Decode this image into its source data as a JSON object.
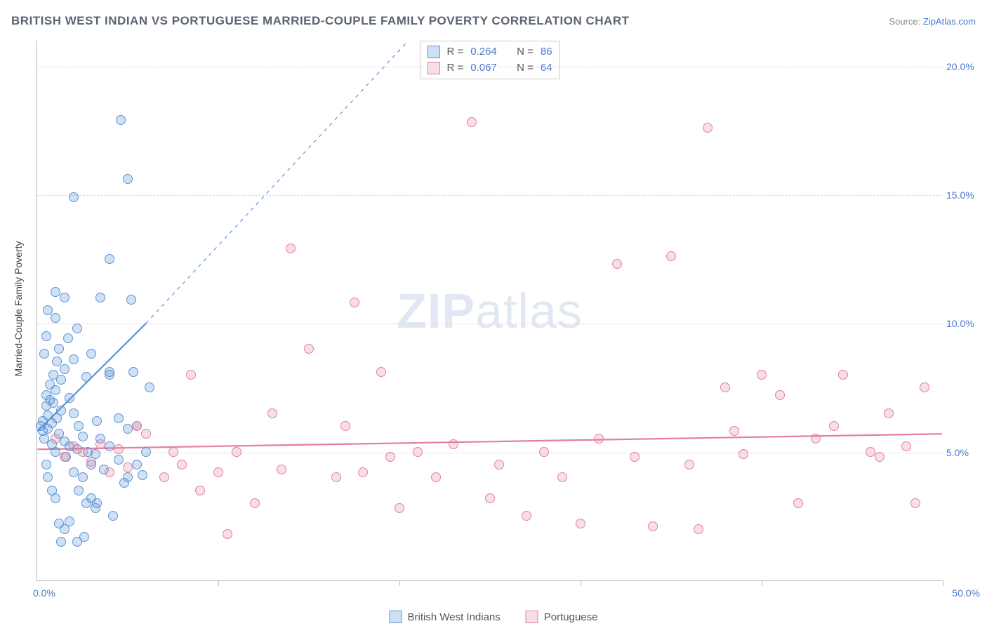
{
  "header": {
    "title": "BRITISH WEST INDIAN VS PORTUGUESE MARRIED-COUPLE FAMILY POVERTY CORRELATION CHART",
    "source_label": "Source:",
    "source_name": "ZipAtlas.com"
  },
  "watermark": {
    "zip": "ZIP",
    "atlas": "atlas"
  },
  "chart": {
    "type": "scatter",
    "yaxis_title": "Married-Couple Family Poverty",
    "background_color": "#ffffff",
    "grid_color": "#d8d8d8",
    "axis_color": "#bbbbbb",
    "value_text_color": "#4a78c8",
    "label_text_color": "#555555",
    "xlim": [
      0,
      50
    ],
    "ylim": [
      0,
      21
    ],
    "xtick_positions": [
      0,
      10,
      20,
      30,
      40,
      50
    ],
    "xtick_labels": {
      "start": "0.0%",
      "end": "50.0%"
    },
    "ytick_values": [
      5,
      10,
      15,
      20
    ],
    "ytick_labels": [
      "5.0%",
      "10.0%",
      "15.0%",
      "20.0%"
    ],
    "marker_radius": 7,
    "marker_border_width": 1.2,
    "marker_fill_opacity": 0.28,
    "series": [
      {
        "name": "British West Indians",
        "color": "#5b93d8",
        "fill_color": "rgba(91,147,216,0.28)",
        "R": "0.264",
        "N": "86",
        "trend": {
          "x1": 0,
          "y1": 5.8,
          "x2": 6.0,
          "y2": 10.0,
          "dash_extend_x2": 20.5,
          "dash_extend_y2": 21.0,
          "stroke_width": 2.2
        },
        "points": [
          [
            0.2,
            6.0
          ],
          [
            0.3,
            5.8
          ],
          [
            0.3,
            6.2
          ],
          [
            0.4,
            5.5
          ],
          [
            0.5,
            6.8
          ],
          [
            0.5,
            7.2
          ],
          [
            0.6,
            5.9
          ],
          [
            0.6,
            6.4
          ],
          [
            0.7,
            7.0
          ],
          [
            0.7,
            7.6
          ],
          [
            0.8,
            6.1
          ],
          [
            0.8,
            5.3
          ],
          [
            0.9,
            6.9
          ],
          [
            0.9,
            8.0
          ],
          [
            1.0,
            5.0
          ],
          [
            1.0,
            7.4
          ],
          [
            1.0,
            10.2
          ],
          [
            1.0,
            11.2
          ],
          [
            1.1,
            6.3
          ],
          [
            1.1,
            8.5
          ],
          [
            1.2,
            5.7
          ],
          [
            1.2,
            9.0
          ],
          [
            1.3,
            7.8
          ],
          [
            1.3,
            6.6
          ],
          [
            1.5,
            5.4
          ],
          [
            1.5,
            8.2
          ],
          [
            1.5,
            11.0
          ],
          [
            1.6,
            4.8
          ],
          [
            1.7,
            9.4
          ],
          [
            1.8,
            5.2
          ],
          [
            1.8,
            7.1
          ],
          [
            2.0,
            4.2
          ],
          [
            2.0,
            6.5
          ],
          [
            2.0,
            8.6
          ],
          [
            2.2,
            5.1
          ],
          [
            2.2,
            9.8
          ],
          [
            2.3,
            3.5
          ],
          [
            2.3,
            6.0
          ],
          [
            2.5,
            5.6
          ],
          [
            2.5,
            4.0
          ],
          [
            2.7,
            3.0
          ],
          [
            2.7,
            7.9
          ],
          [
            2.8,
            5.0
          ],
          [
            3.0,
            4.5
          ],
          [
            3.0,
            3.2
          ],
          [
            3.0,
            8.8
          ],
          [
            3.2,
            4.9
          ],
          [
            3.2,
            2.8
          ],
          [
            3.3,
            3.0
          ],
          [
            3.3,
            6.2
          ],
          [
            3.5,
            5.5
          ],
          [
            3.5,
            11.0
          ],
          [
            3.7,
            4.3
          ],
          [
            4.0,
            12.5
          ],
          [
            4.0,
            5.2
          ],
          [
            4.0,
            8.0
          ],
          [
            4.0,
            8.1
          ],
          [
            4.2,
            2.5
          ],
          [
            4.5,
            6.3
          ],
          [
            4.5,
            4.7
          ],
          [
            4.6,
            17.9
          ],
          [
            4.8,
            3.8
          ],
          [
            5.0,
            15.6
          ],
          [
            5.0,
            4.0
          ],
          [
            5.0,
            5.9
          ],
          [
            5.2,
            10.9
          ],
          [
            5.3,
            8.1
          ],
          [
            5.5,
            4.5
          ],
          [
            5.5,
            6.0
          ],
          [
            5.8,
            4.1
          ],
          [
            6.0,
            5.0
          ],
          [
            6.2,
            7.5
          ],
          [
            2.0,
            14.9
          ],
          [
            1.2,
            2.2
          ],
          [
            1.5,
            2.0
          ],
          [
            1.8,
            2.3
          ],
          [
            0.5,
            4.5
          ],
          [
            0.6,
            4.0
          ],
          [
            0.8,
            3.5
          ],
          [
            1.0,
            3.2
          ],
          [
            1.3,
            1.5
          ],
          [
            2.2,
            1.5
          ],
          [
            2.6,
            1.7
          ],
          [
            0.4,
            8.8
          ],
          [
            0.5,
            9.5
          ],
          [
            0.6,
            10.5
          ]
        ]
      },
      {
        "name": "Portuguese",
        "color": "#e57f9b",
        "fill_color": "rgba(229,127,155,0.25)",
        "R": "0.067",
        "N": "64",
        "trend": {
          "x1": 0,
          "y1": 5.1,
          "x2": 50,
          "y2": 5.7,
          "stroke_width": 2.2
        },
        "points": [
          [
            1.0,
            5.5
          ],
          [
            1.5,
            4.8
          ],
          [
            2.0,
            5.2
          ],
          [
            2.5,
            5.0
          ],
          [
            3.0,
            4.6
          ],
          [
            3.5,
            5.3
          ],
          [
            4.0,
            4.2
          ],
          [
            4.5,
            5.1
          ],
          [
            5.0,
            4.4
          ],
          [
            5.5,
            6.0
          ],
          [
            6.0,
            5.7
          ],
          [
            7.0,
            4.0
          ],
          [
            7.5,
            5.0
          ],
          [
            8.0,
            4.5
          ],
          [
            8.5,
            8.0
          ],
          [
            9.0,
            3.5
          ],
          [
            10.0,
            4.2
          ],
          [
            10.5,
            1.8
          ],
          [
            11.0,
            5.0
          ],
          [
            12.0,
            3.0
          ],
          [
            13.0,
            6.5
          ],
          [
            13.5,
            4.3
          ],
          [
            14.0,
            12.9
          ],
          [
            15.0,
            9.0
          ],
          [
            16.5,
            4.0
          ],
          [
            17.0,
            6.0
          ],
          [
            17.5,
            10.8
          ],
          [
            18.0,
            4.2
          ],
          [
            19.0,
            8.1
          ],
          [
            19.5,
            4.8
          ],
          [
            20.0,
            2.8
          ],
          [
            21.0,
            5.0
          ],
          [
            22.0,
            4.0
          ],
          [
            23.0,
            5.3
          ],
          [
            24.0,
            17.8
          ],
          [
            25.0,
            3.2
          ],
          [
            25.5,
            4.5
          ],
          [
            27.0,
            2.5
          ],
          [
            28.0,
            5.0
          ],
          [
            29.0,
            4.0
          ],
          [
            30.0,
            2.2
          ],
          [
            31.0,
            5.5
          ],
          [
            32.0,
            12.3
          ],
          [
            33.0,
            4.8
          ],
          [
            34.0,
            2.1
          ],
          [
            35.0,
            12.6
          ],
          [
            36.0,
            4.5
          ],
          [
            36.5,
            2.0
          ],
          [
            37.0,
            17.6
          ],
          [
            38.0,
            7.5
          ],
          [
            38.5,
            5.8
          ],
          [
            39.0,
            4.9
          ],
          [
            40.0,
            8.0
          ],
          [
            41.0,
            7.2
          ],
          [
            42.0,
            3.0
          ],
          [
            43.0,
            5.5
          ],
          [
            44.0,
            6.0
          ],
          [
            46.0,
            5.0
          ],
          [
            47.0,
            6.5
          ],
          [
            48.0,
            5.2
          ],
          [
            48.5,
            3.0
          ],
          [
            49.0,
            7.5
          ],
          [
            46.5,
            4.8
          ],
          [
            44.5,
            8.0
          ]
        ]
      }
    ]
  },
  "legends": {
    "stat_prefix_R": "R =",
    "stat_prefix_N": "N =",
    "bottom": [
      "British West Indians",
      "Portuguese"
    ]
  }
}
